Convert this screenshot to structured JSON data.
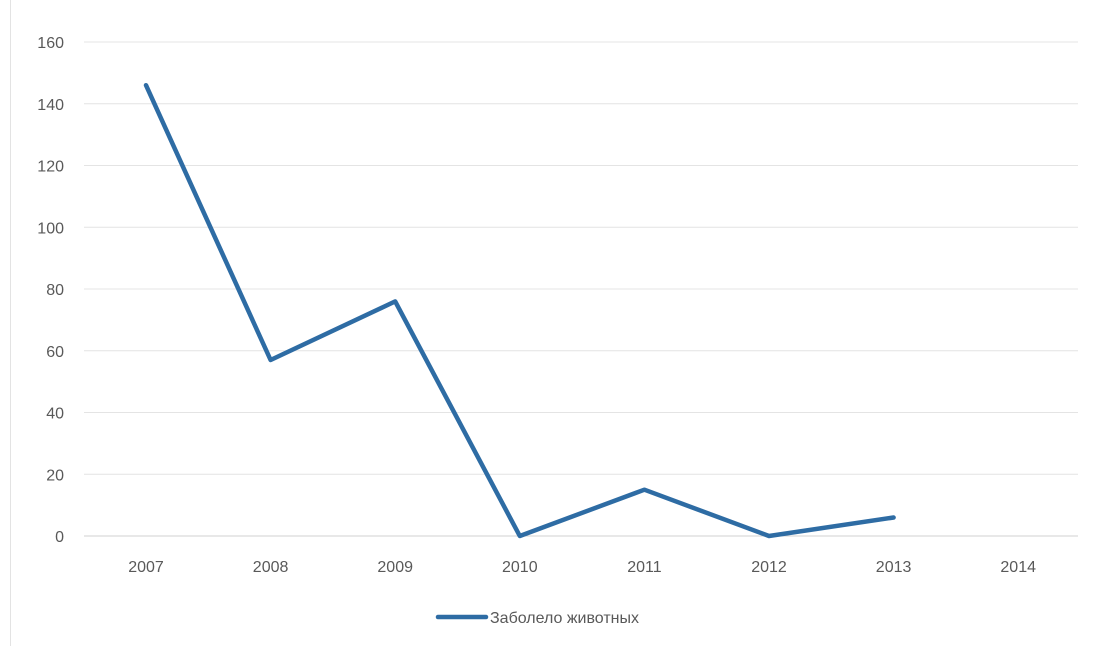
{
  "chart_data": {
    "type": "line",
    "title": "",
    "xlabel": "",
    "ylabel": "",
    "categories": [
      "2007",
      "2008",
      "2009",
      "2010",
      "2011",
      "2012",
      "2013",
      "2014"
    ],
    "ylim": [
      0,
      160
    ],
    "yticks": [
      0,
      20,
      40,
      60,
      80,
      100,
      120,
      140,
      160
    ],
    "grid": true,
    "legend_position": "bottom",
    "series": [
      {
        "name": "Заболело животных",
        "color": "#2e6ca4",
        "values": [
          146,
          57,
          76,
          0,
          15,
          0,
          6,
          null
        ]
      }
    ]
  }
}
